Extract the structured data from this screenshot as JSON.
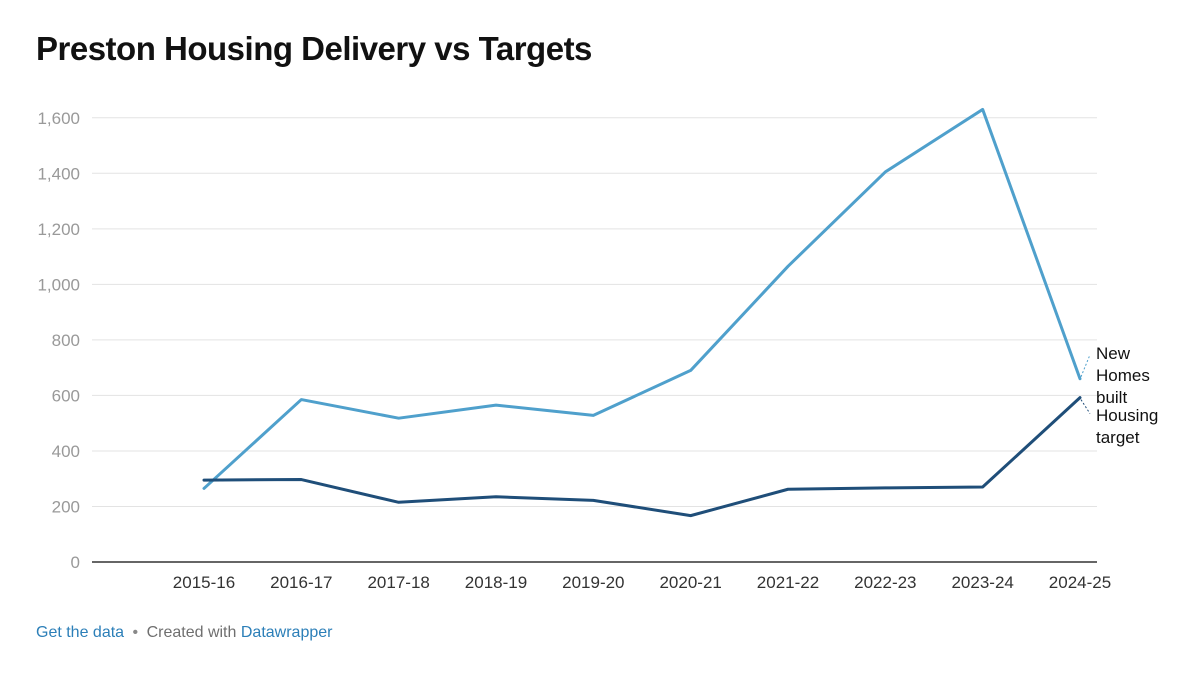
{
  "chart_data": {
    "type": "line",
    "title": "Preston Housing Delivery vs Targets",
    "xlabel": "",
    "ylabel": "",
    "categories": [
      "2015-16",
      "2016-17",
      "2017-18",
      "2018-19",
      "2019-20",
      "2020-21",
      "2021-22",
      "2022-23",
      "2023-24",
      "2024-25"
    ],
    "series": [
      {
        "name": "New Homes built",
        "label_lines": [
          "New",
          "Homes",
          "built"
        ],
        "color": "#4fa0cc",
        "values": [
          265,
          585,
          518,
          565,
          528,
          690,
          1065,
          1405,
          1630,
          660
        ]
      },
      {
        "name": "Housing target",
        "label_lines": [
          "Housing",
          "target"
        ],
        "color": "#1f4e79",
        "values": [
          295,
          297,
          215,
          235,
          222,
          167,
          262,
          267,
          270,
          592
        ]
      }
    ],
    "ylim": [
      0,
      1700
    ],
    "yticks": [
      0,
      200,
      400,
      600,
      800,
      1000,
      1200,
      1400,
      1600
    ],
    "ytick_labels": [
      "0",
      "200",
      "400",
      "600",
      "800",
      "1,000",
      "1,200",
      "1,400",
      "1,600"
    ],
    "grid": true,
    "legend": "inline-right"
  },
  "footer": {
    "get_data": "Get the data",
    "separator": "•",
    "created_with": "Created with",
    "tool": "Datawrapper"
  }
}
